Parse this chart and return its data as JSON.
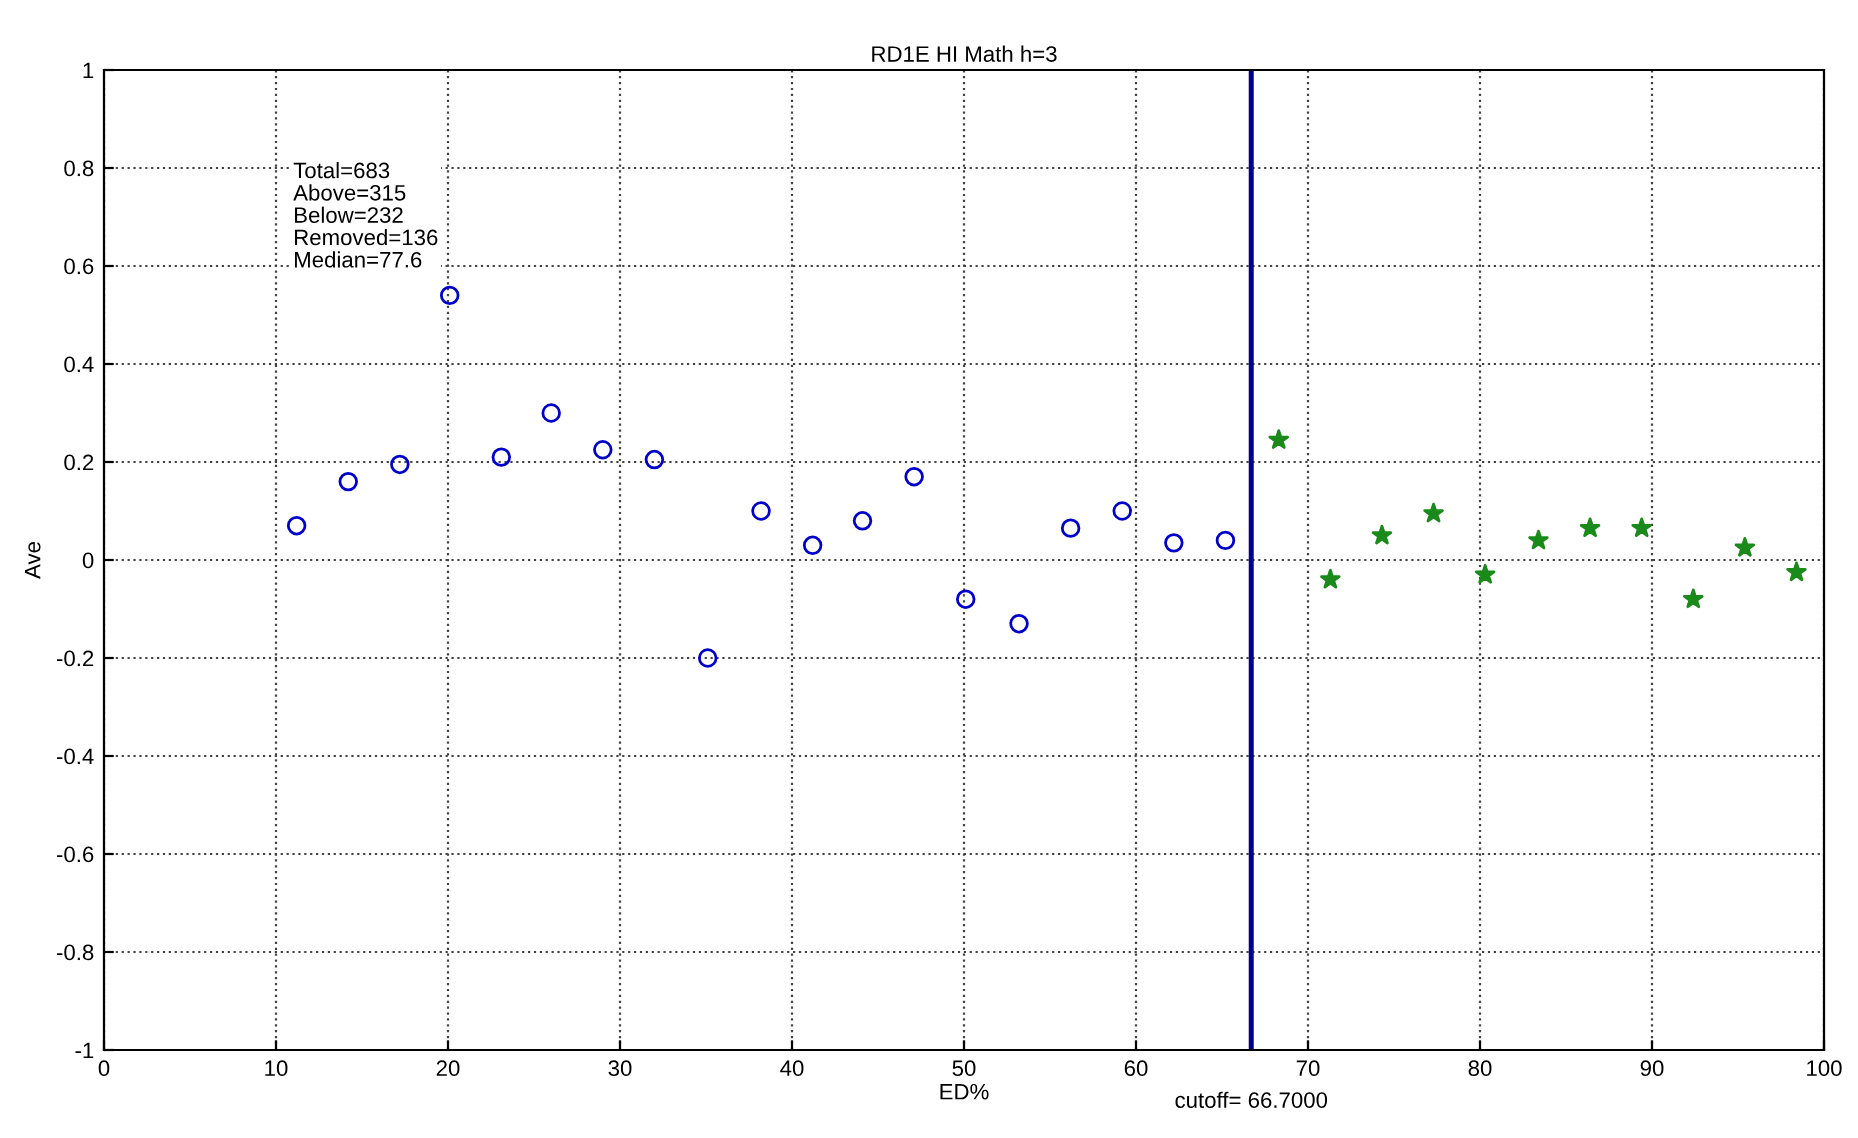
{
  "chart_data": {
    "type": "scatter",
    "title": "RD1E HI Math h=3",
    "xlabel": "ED%",
    "ylabel": "Ave",
    "xlim": [
      0,
      100
    ],
    "xticks": [
      0,
      10,
      20,
      30,
      40,
      50,
      60,
      70,
      80,
      90,
      100
    ],
    "ylim": [
      -1,
      1
    ],
    "yticks": [
      -1,
      -0.8,
      -0.6,
      -0.4,
      -0.2,
      0,
      0.2,
      0.4,
      0.6,
      0.8,
      1
    ],
    "grid": true,
    "annotations": [
      "Total=683\nAbove=315\nBelow=232\nRemoved=136\nMedian=77.6"
    ],
    "ref_lines": [
      {
        "axis": "x",
        "value": 66.7,
        "label": "cutoff= 66.7000",
        "color": "#00008b",
        "line_style": "solid"
      }
    ],
    "series": [
      {
        "color": "#0000cc",
        "marker": "circle",
        "x": [
          11.2,
          14.2,
          17.2,
          20.1,
          23.1,
          26.0,
          29.0,
          32.0,
          35.1,
          38.2,
          41.2,
          44.1,
          47.1,
          50.1,
          53.2,
          56.2,
          59.2,
          62.2,
          65.2
        ],
        "values": [
          0.07,
          0.16,
          0.195,
          0.54,
          0.21,
          0.3,
          0.225,
          0.205,
          -0.2,
          0.1,
          0.03,
          0.08,
          0.17,
          -0.08,
          -0.13,
          0.065,
          0.1,
          0.035,
          0.04
        ]
      },
      {
        "color": "#1a8a1a",
        "marker": "star",
        "x": [
          68.3,
          71.3,
          74.3,
          77.3,
          80.3,
          83.4,
          86.4,
          89.4,
          92.4,
          95.4,
          98.4
        ],
        "values": [
          0.245,
          -0.04,
          0.05,
          0.095,
          -0.03,
          0.04,
          0.065,
          0.065,
          -0.08,
          0.025,
          -0.025
        ]
      }
    ]
  }
}
